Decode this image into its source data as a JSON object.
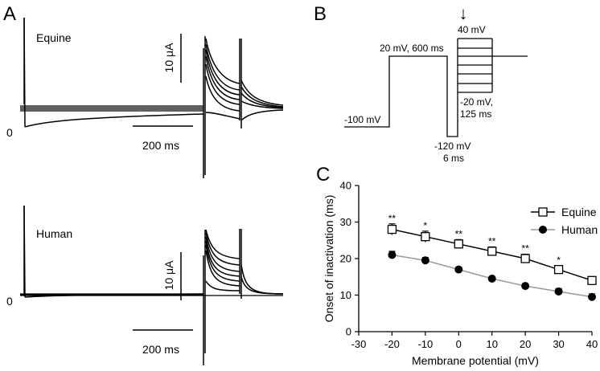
{
  "panels": {
    "a": {
      "label": "A",
      "top_trace": {
        "name": "Equine",
        "zero_label": "0"
      },
      "bottom_trace": {
        "name": "Human",
        "zero_label": "0"
      },
      "scale_current": "10 μA",
      "scale_time": "200 ms"
    },
    "b": {
      "label": "B",
      "protocol_labels": {
        "holding": "-100 mV",
        "prepulse": "20  mV, 600 ms",
        "gap_voltage": "-120 mV",
        "gap_time": "6 ms",
        "step_top": "40  mV",
        "step_bottom_voltage": "-20  mV,",
        "step_bottom_time": "125 ms"
      },
      "arrow_symbol": "↓"
    },
    "c": {
      "label": "C"
    }
  },
  "chart_data": {
    "type": "scatter",
    "xlabel": "Membrane potential (mV)",
    "ylabel": "Onset of inactivation (ms)",
    "xlim": [
      -30,
      40
    ],
    "ylim": [
      0,
      40
    ],
    "xticks": [
      -30,
      -20,
      -10,
      0,
      10,
      20,
      30,
      40
    ],
    "yticks": [
      0,
      10,
      20,
      30,
      40
    ],
    "grid": false,
    "legend_position": "top-right",
    "x": [
      -20,
      -10,
      0,
      10,
      20,
      30,
      40
    ],
    "series": [
      {
        "name": "Equine",
        "marker": "open-square",
        "line_color": "#000000",
        "values": [
          28,
          26,
          24,
          22,
          20,
          17,
          14
        ],
        "errors": [
          1.5,
          1.5,
          1.2,
          1.2,
          1.2,
          1.0,
          1.0
        ],
        "significance": [
          "**",
          "*",
          "**",
          "**",
          "**",
          "*",
          ""
        ]
      },
      {
        "name": "Human",
        "marker": "filled-circle",
        "line_color": "#999999",
        "values": [
          21,
          19.5,
          17,
          14.5,
          12.5,
          11,
          9.5
        ],
        "errors": [
          1.0,
          0.8,
          0.6,
          0.6,
          0.6,
          0.8,
          0.8
        ],
        "significance": [
          "",
          "",
          "",
          "",
          "",
          "",
          ""
        ]
      }
    ]
  }
}
